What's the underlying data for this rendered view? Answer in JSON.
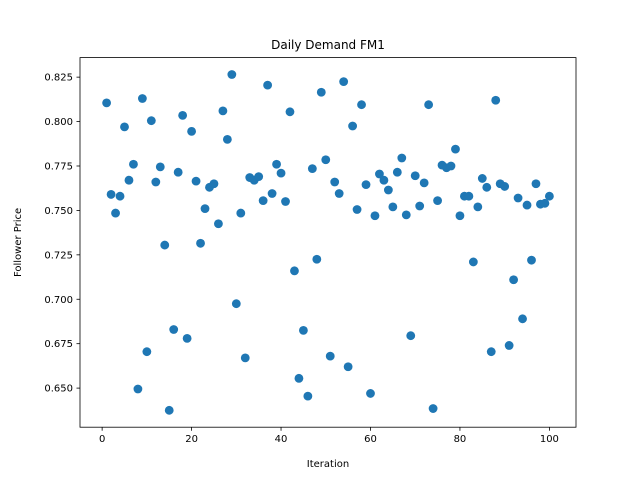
{
  "chart_data": {
    "type": "scatter",
    "title": "Daily Demand FM1",
    "xlabel": "Iteration",
    "ylabel": "Follower Price",
    "xlim": [
      -4.95,
      105.95
    ],
    "ylim": [
      0.628,
      0.836
    ],
    "xticks": [
      0,
      20,
      40,
      60,
      80,
      100
    ],
    "yticks": [
      0.65,
      0.675,
      0.7,
      0.725,
      0.75,
      0.775,
      0.8,
      0.825
    ],
    "ytick_labels": [
      "0.650",
      "0.675",
      "0.700",
      "0.725",
      "0.750",
      "0.775",
      "0.800",
      "0.825"
    ],
    "grid": false,
    "marker_color": "#1f77b4",
    "series": [
      {
        "x": [
          1,
          2,
          3,
          4,
          5,
          6,
          7,
          8,
          9,
          10,
          11,
          12,
          13,
          14,
          15,
          16,
          17,
          18,
          19,
          20,
          21,
          22,
          23,
          24,
          25,
          26,
          27,
          28,
          29,
          30,
          31,
          32,
          33,
          34,
          35,
          36,
          37,
          38,
          39,
          40,
          41,
          42,
          43,
          44,
          45,
          46,
          47,
          48,
          49,
          50,
          51,
          52,
          53,
          54,
          55,
          56,
          57,
          58,
          59,
          60,
          61,
          62,
          63,
          64,
          65,
          66,
          67,
          68,
          69,
          70,
          71,
          72,
          73,
          74,
          75,
          76,
          77,
          78,
          79,
          80,
          81,
          82,
          83,
          84,
          85,
          86,
          87,
          88,
          89,
          90,
          91,
          92,
          93,
          94,
          95,
          96,
          97,
          98,
          99,
          100
        ],
        "y": [
          0.8105,
          0.759,
          0.7485,
          0.758,
          0.797,
          0.767,
          0.776,
          0.6495,
          0.813,
          0.6705,
          0.8005,
          0.766,
          0.7745,
          0.7305,
          0.6375,
          0.683,
          0.7715,
          0.8035,
          0.678,
          0.7945,
          0.7665,
          0.7315,
          0.751,
          0.763,
          0.765,
          0.7425,
          0.806,
          0.79,
          0.8265,
          0.6975,
          0.7485,
          0.667,
          0.7685,
          0.767,
          0.769,
          0.7555,
          0.8205,
          0.7595,
          0.776,
          0.771,
          0.755,
          0.8055,
          0.716,
          0.6555,
          0.6825,
          0.6455,
          0.7735,
          0.7225,
          0.8165,
          0.7785,
          0.668,
          0.766,
          0.7595,
          0.8225,
          0.662,
          0.7975,
          0.7505,
          0.8095,
          0.7645,
          0.647,
          0.747,
          0.7705,
          0.767,
          0.7615,
          0.752,
          0.7715,
          0.7795,
          0.7475,
          0.6795,
          0.7695,
          0.7525,
          0.7655,
          0.8095,
          0.6385,
          0.7555,
          0.7755,
          0.774,
          0.775,
          0.7845,
          0.747,
          0.758,
          0.758,
          0.721,
          0.752,
          0.768,
          0.763,
          0.6705,
          0.812,
          0.765,
          0.7635,
          0.674,
          0.711,
          0.757,
          0.689,
          0.753,
          0.722,
          0.765,
          0.7535,
          0.754,
          0.758
        ]
      }
    ]
  }
}
